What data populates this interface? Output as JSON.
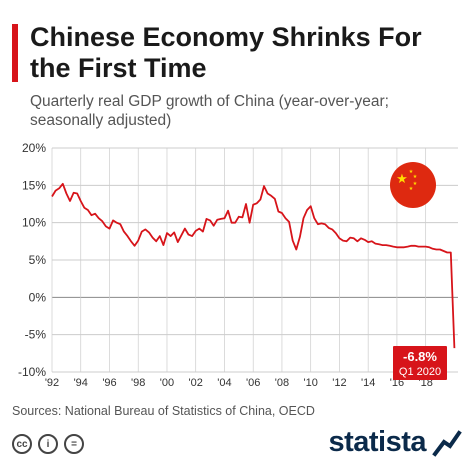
{
  "header": {
    "title": "Chinese Economy Shrinks For the First Time",
    "subtitle": "Quarterly real GDP growth of China (year-over-year; seasonally adjusted)"
  },
  "source": "Sources: National Bureau of Statistics of China, OECD",
  "brand": {
    "name": "statista"
  },
  "icons": [
    "cc-icon",
    "attribution-icon",
    "no-derivatives-icon",
    "china-flag-icon",
    "statista-logo-icon"
  ],
  "colors": {
    "line": "#d7141a",
    "accent": "#d7141a",
    "grid": "#cccccc",
    "label_bg": "#d7141a",
    "brand": "#0b2a4a"
  },
  "chart_data": {
    "type": "line",
    "xlim": [
      1992,
      2020.25
    ],
    "ylim": [
      -10,
      20
    ],
    "y_ticks": [
      -10,
      -5,
      0,
      5,
      10,
      15,
      20
    ],
    "y_tick_labels": [
      "-10%",
      "-5%",
      "0%",
      "5%",
      "10%",
      "15%",
      "20%"
    ],
    "x_ticks": [
      1992,
      1994,
      1996,
      1998,
      2000,
      2002,
      2004,
      2006,
      2008,
      2010,
      2012,
      2014,
      2016,
      2018
    ],
    "x_tick_labels": [
      "'92",
      "'94",
      "'96",
      "'98",
      "'00",
      "'02",
      "'04",
      "'06",
      "'08",
      "'10",
      "'12",
      "'14",
      "'16",
      "'18"
    ],
    "grid": true,
    "annotation": {
      "value_label": "-6.8%",
      "period_label": "Q1 2020"
    },
    "series": [
      {
        "x": [
          1992.0,
          1992.25,
          1992.5,
          1992.75,
          1993.0,
          1993.25,
          1993.5,
          1993.75,
          1994.0,
          1994.25,
          1994.5,
          1994.75,
          1995.0,
          1995.25,
          1995.5,
          1995.75,
          1996.0,
          1996.25,
          1996.5,
          1996.75,
          1997.0,
          1997.25,
          1997.5,
          1997.75,
          1998.0,
          1998.25,
          1998.5,
          1998.75,
          1999.0,
          1999.25,
          1999.5,
          1999.75,
          2000.0,
          2000.25,
          2000.5,
          2000.75,
          2001.0,
          2001.25,
          2001.5,
          2001.75,
          2002.0,
          2002.25,
          2002.5,
          2002.75,
          2003.0,
          2003.25,
          2003.5,
          2003.75,
          2004.0,
          2004.25,
          2004.5,
          2004.75,
          2005.0,
          2005.25,
          2005.5,
          2005.75,
          2006.0,
          2006.25,
          2006.5,
          2006.75,
          2007.0,
          2007.25,
          2007.5,
          2007.75,
          2008.0,
          2008.25,
          2008.5,
          2008.75,
          2009.0,
          2009.25,
          2009.5,
          2009.75,
          2010.0,
          2010.25,
          2010.5,
          2010.75,
          2011.0,
          2011.25,
          2011.5,
          2011.75,
          2012.0,
          2012.25,
          2012.5,
          2012.75,
          2013.0,
          2013.25,
          2013.5,
          2013.75,
          2014.0,
          2014.25,
          2014.5,
          2014.75,
          2015.0,
          2015.25,
          2015.5,
          2015.75,
          2016.0,
          2016.25,
          2016.5,
          2016.75,
          2017.0,
          2017.25,
          2017.5,
          2017.75,
          2018.0,
          2018.25,
          2018.5,
          2018.75,
          2019.0,
          2019.25,
          2019.5,
          2019.75,
          2020.0
        ],
        "values": [
          13.5,
          14.3,
          14.6,
          15.2,
          13.9,
          12.9,
          14.0,
          13.9,
          12.9,
          12.0,
          11.7,
          11.0,
          11.2,
          10.6,
          10.2,
          9.5,
          9.2,
          10.3,
          10.0,
          9.8,
          8.8,
          8.2,
          7.5,
          6.9,
          7.6,
          8.8,
          9.1,
          8.7,
          8.0,
          7.5,
          8.2,
          7.0,
          8.6,
          8.2,
          8.7,
          7.4,
          8.3,
          9.2,
          8.4,
          8.2,
          8.9,
          9.2,
          8.8,
          10.5,
          10.3,
          9.6,
          10.4,
          10.5,
          10.6,
          11.6,
          10.0,
          10.0,
          10.8,
          10.7,
          12.5,
          10.0,
          12.4,
          12.6,
          13.1,
          14.9,
          13.9,
          13.6,
          13.2,
          11.5,
          11.3,
          10.6,
          10.1,
          7.6,
          6.4,
          8.1,
          10.6,
          11.7,
          12.2,
          10.6,
          9.8,
          9.9,
          9.8,
          9.3,
          9.1,
          8.6,
          7.9,
          7.6,
          7.5,
          8.0,
          7.9,
          7.5,
          7.9,
          7.7,
          7.4,
          7.5,
          7.2,
          7.1,
          7.0,
          7.0,
          6.9,
          6.8,
          6.7,
          6.7,
          6.7,
          6.8,
          6.9,
          6.9,
          6.8,
          6.8,
          6.8,
          6.7,
          6.5,
          6.4,
          6.4,
          6.2,
          6.0,
          6.0,
          -6.8
        ]
      }
    ]
  }
}
